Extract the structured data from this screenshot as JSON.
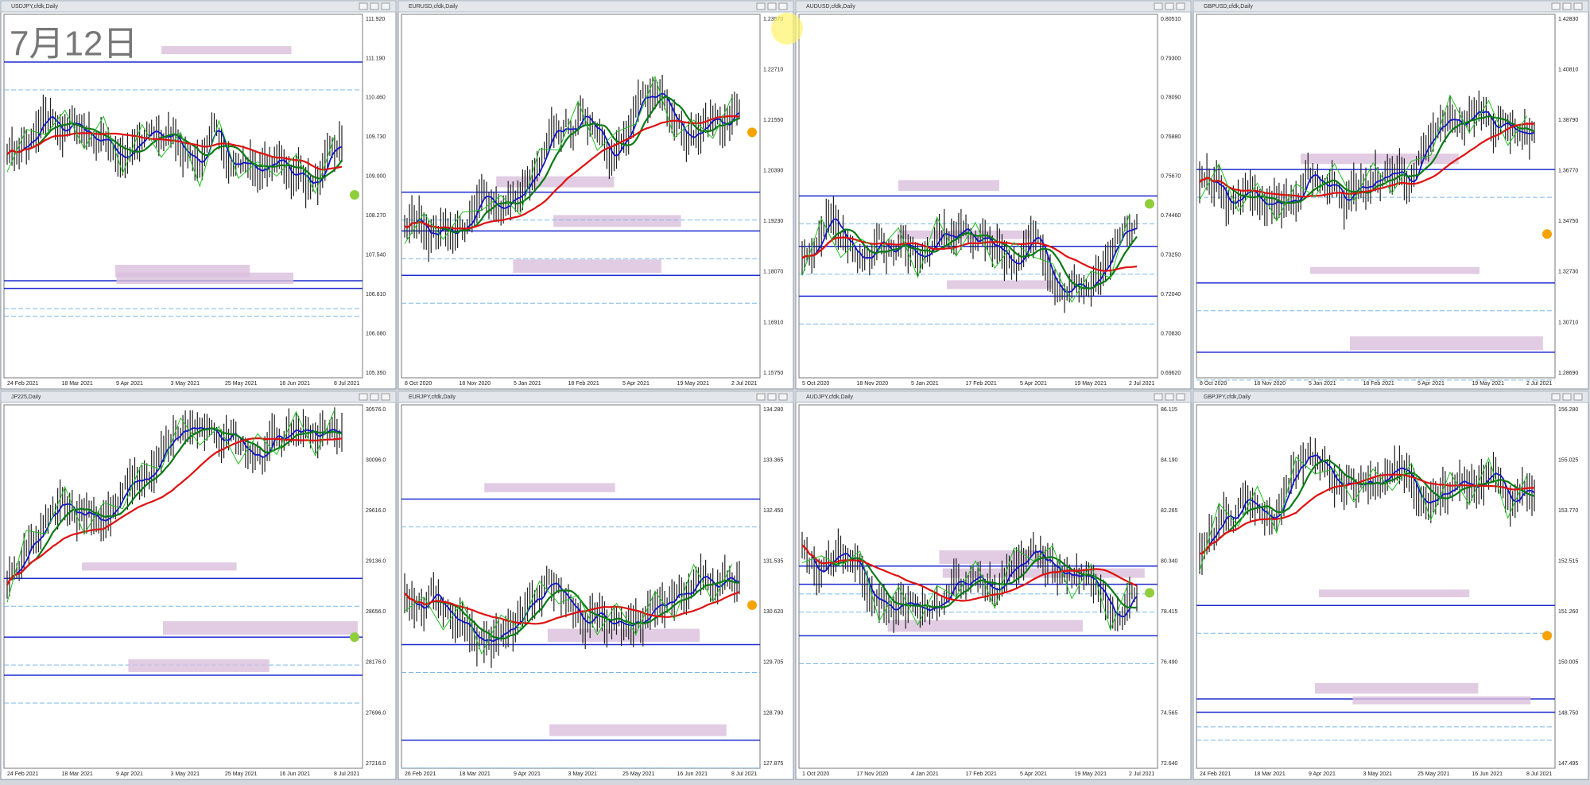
{
  "overlay_date": "7月12日",
  "panels": [
    {
      "title": "USDJPY,cfdk,Daily",
      "prices": [
        "111.920",
        "111.190",
        "110.460",
        "109.730",
        "109.000",
        "108.270",
        "107.540",
        "106.810",
        "106.080",
        "105.350"
      ],
      "dates": [
        "24 Feb 2021",
        "18 Mar 2021",
        "9 Apr 2021",
        "3 May 2021",
        "25 May 2021",
        "16 Jun 2021",
        "8 Jul 2021"
      ]
    },
    {
      "title": "EURUSD,cfdk,Daily",
      "prices": [
        "1.23870",
        "1.22710",
        "1.21550",
        "1.20390",
        "1.19230",
        "1.18070",
        "1.16910",
        "1.15750"
      ],
      "dates": [
        "8 Oct 2020",
        "18 Nov 2020",
        "5 Jan 2021",
        "18 Feb 2021",
        "5 Apr 2021",
        "19 May 2021",
        "2 Jul 2021"
      ]
    },
    {
      "title": "AUDUSD,cfdk,Daily",
      "prices": [
        "0.80510",
        "0.79300",
        "0.78090",
        "0.76880",
        "0.75670",
        "0.74460",
        "0.73250",
        "0.72040",
        "0.70830",
        "0.69620"
      ],
      "dates": [
        "5 Oct 2020",
        "18 Nov 2020",
        "5 Jan 2021",
        "17 Feb 2021",
        "5 Apr 2021",
        "19 May 2021",
        "2 Jul 2021"
      ]
    },
    {
      "title": "GBPUSD,cfdk,Daily",
      "prices": [
        "1.42830",
        "1.40810",
        "1.38790",
        "1.36770",
        "1.34750",
        "1.32730",
        "1.30710",
        "1.28690"
      ],
      "dates": [
        "8 Oct 2020",
        "18 Nov 2020",
        "5 Jan 2021",
        "18 Feb 2021",
        "5 Apr 2021",
        "19 May 2021",
        "2 Jul 2021"
      ]
    },
    {
      "title": "JP225,Daily",
      "prices": [
        "30576.0",
        "30096.0",
        "29616.0",
        "29136.0",
        "28656.0",
        "28176.0",
        "27696.0",
        "27216.0"
      ],
      "dates": [
        "24 Feb 2021",
        "18 Mar 2021",
        "9 Apr 2021",
        "3 May 2021",
        "25 May 2021",
        "16 Jun 2021",
        "8 Jul 2021"
      ]
    },
    {
      "title": "EURJPY,cfdk,Daily",
      "prices": [
        "134.280",
        "133.365",
        "132.450",
        "131.535",
        "130.620",
        "129.705",
        "128.790",
        "127.875"
      ],
      "dates": [
        "26 Feb 2021",
        "18 Mar 2021",
        "9 Apr 2021",
        "3 May 2021",
        "25 May 2021",
        "16 Jun 2021",
        "8 Jul 2021"
      ]
    },
    {
      "title": "AUDJPY,cfdk,Daily",
      "prices": [
        "86.115",
        "84.190",
        "82.265",
        "80.340",
        "78.415",
        "76.490",
        "74.565",
        "72.640"
      ],
      "dates": [
        "1 Oct 2020",
        "17 Nov 2020",
        "4 Jan 2021",
        "17 Feb 2021",
        "5 Apr 2021",
        "19 May 2021",
        "2 Jul 2021"
      ]
    },
    {
      "title": "GBPJPY,cfdk,Daily",
      "prices": [
        "156.280",
        "155.025",
        "153.770",
        "152.515",
        "151.260",
        "150.005",
        "148.750",
        "147.495"
      ],
      "dates": [
        "24 Feb 2021",
        "18 Mar 2021",
        "9 Apr 2021",
        "3 May 2021",
        "25 May 2021",
        "16 Jun 2021",
        "8 Jul 2021"
      ]
    }
  ]
}
